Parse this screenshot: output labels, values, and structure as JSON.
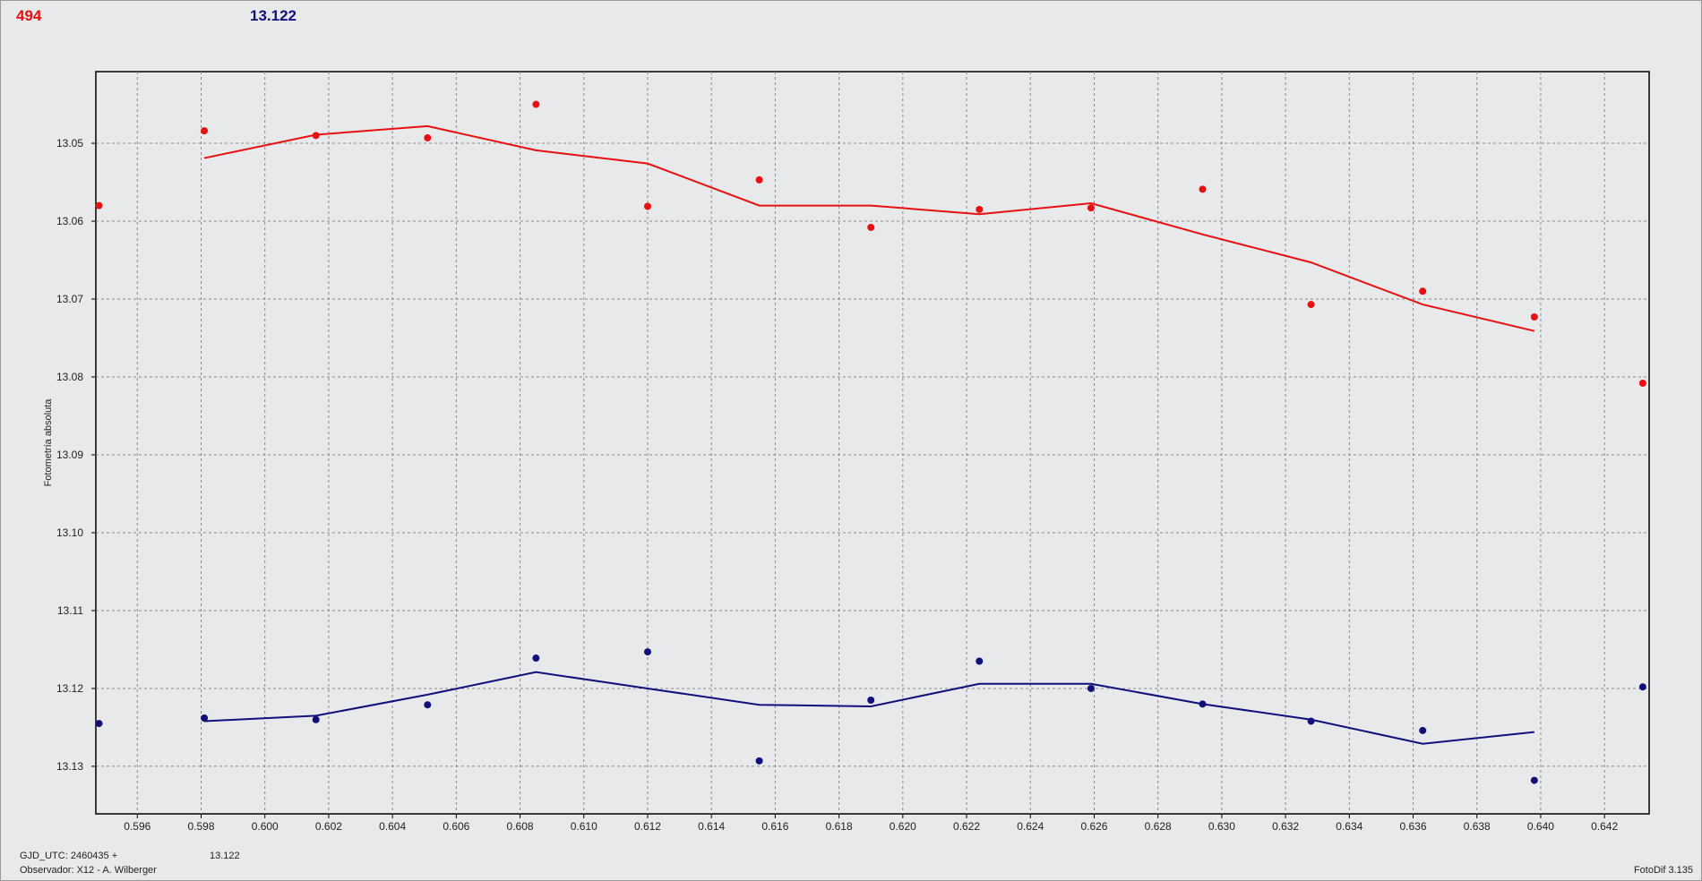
{
  "header": {
    "left_value": "494",
    "right_value": "13.122"
  },
  "footer": {
    "gjd_label": "GJD_UTC: 2460435 +",
    "observer": "Observador: X12 - A. Wilberger",
    "comp_value": "13.122",
    "version": "FotoDif 3.135"
  },
  "colors": {
    "red": "#e81010",
    "blue": "#10107a",
    "grid": "#8a8a8a",
    "background": "#e8e9eb"
  },
  "chart_data": {
    "type": "scatter",
    "ylabel": "Fotometría absoluta",
    "xlim": [
      0.5947,
      0.6434
    ],
    "ylim": [
      13.1361,
      13.0408
    ],
    "y_inverted": true,
    "grid": true,
    "x_ticks": [
      "0.596",
      "0.598",
      "0.600",
      "0.602",
      "0.604",
      "0.606",
      "0.608",
      "0.610",
      "0.612",
      "0.614",
      "0.616",
      "0.618",
      "0.620",
      "0.622",
      "0.624",
      "0.626",
      "0.628",
      "0.630",
      "0.632",
      "0.634",
      "0.636",
      "0.638",
      "0.640",
      "0.642"
    ],
    "y_ticks": [
      "13.05",
      "13.06",
      "13.07",
      "13.08",
      "13.09",
      "13.10",
      "13.11",
      "13.12",
      "13.13"
    ],
    "series": [
      {
        "color": "#e81010",
        "points": [
          [
            0.5948,
            13.058
          ],
          [
            0.5981,
            13.0484
          ],
          [
            0.6016,
            13.049
          ],
          [
            0.6051,
            13.0493
          ],
          [
            0.6085,
            13.045
          ],
          [
            0.612,
            13.0581
          ],
          [
            0.6155,
            13.0547
          ],
          [
            0.619,
            13.0608
          ],
          [
            0.6224,
            13.0585
          ],
          [
            0.6259,
            13.0583
          ],
          [
            0.6294,
            13.0559
          ],
          [
            0.6328,
            13.0707
          ],
          [
            0.6363,
            13.069
          ],
          [
            0.6398,
            13.0723
          ],
          [
            0.6432,
            13.0808
          ]
        ],
        "line": [
          [
            0.5981,
            13.0519
          ],
          [
            0.6016,
            13.0489
          ],
          [
            0.6051,
            13.0478
          ],
          [
            0.6085,
            13.0509
          ],
          [
            0.612,
            13.0526
          ],
          [
            0.6155,
            13.058
          ],
          [
            0.619,
            13.058
          ],
          [
            0.6224,
            13.0591
          ],
          [
            0.6259,
            13.0577
          ],
          [
            0.6294,
            13.0617
          ],
          [
            0.6328,
            13.0653
          ],
          [
            0.6363,
            13.0707
          ],
          [
            0.6398,
            13.0741
          ]
        ]
      },
      {
        "color": "#10107a",
        "points": [
          [
            0.5948,
            13.1245
          ],
          [
            0.5981,
            13.1238
          ],
          [
            0.6016,
            13.124
          ],
          [
            0.6051,
            13.1221
          ],
          [
            0.6085,
            13.1161
          ],
          [
            0.612,
            13.1153
          ],
          [
            0.6155,
            13.1293
          ],
          [
            0.619,
            13.1215
          ],
          [
            0.6224,
            13.1165
          ],
          [
            0.6259,
            13.12
          ],
          [
            0.6294,
            13.122
          ],
          [
            0.6328,
            13.1242
          ],
          [
            0.6363,
            13.1254
          ],
          [
            0.6398,
            13.1318
          ],
          [
            0.6432,
            13.1198
          ]
        ],
        "line": [
          [
            0.5981,
            13.1242
          ],
          [
            0.6016,
            13.1235
          ],
          [
            0.6051,
            13.1208
          ],
          [
            0.6085,
            13.1179
          ],
          [
            0.612,
            13.12
          ],
          [
            0.6155,
            13.1221
          ],
          [
            0.619,
            13.1223
          ],
          [
            0.6224,
            13.1194
          ],
          [
            0.6259,
            13.1194
          ],
          [
            0.6294,
            13.122
          ],
          [
            0.6328,
            13.124
          ],
          [
            0.6363,
            13.1271
          ],
          [
            0.6398,
            13.1256
          ]
        ]
      }
    ]
  }
}
